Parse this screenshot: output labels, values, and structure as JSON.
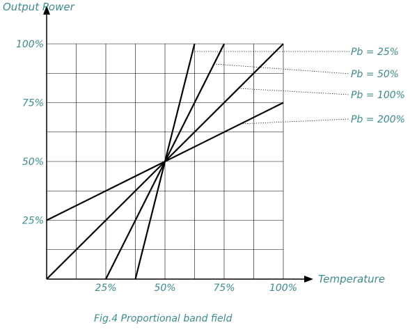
{
  "chart_data": {
    "type": "line",
    "title": "",
    "caption": "Fig.4 Proportional band field",
    "xlabel": "Temperature",
    "ylabel": "Output Power",
    "xlim": [
      0,
      100
    ],
    "ylim": [
      0,
      100
    ],
    "x_ticks": [
      {
        "value": 25,
        "label": "25%"
      },
      {
        "value": 50,
        "label": "50%"
      },
      {
        "value": 75,
        "label": "75%"
      },
      {
        "value": 100,
        "label": "100%"
      }
    ],
    "y_ticks": [
      {
        "value": 25,
        "label": "25%"
      },
      {
        "value": 50,
        "label": "50%"
      },
      {
        "value": 75,
        "label": "75%"
      },
      {
        "value": 100,
        "label": "100%"
      }
    ],
    "grid": true,
    "grid_step": 12.5,
    "series": [
      {
        "name": "Pb = 25%",
        "x": [
          37.5,
          62.5
        ],
        "y": [
          0,
          100
        ]
      },
      {
        "name": "Pb = 50%",
        "x": [
          25,
          75
        ],
        "y": [
          0,
          100
        ]
      },
      {
        "name": "Pb = 100%",
        "x": [
          0,
          100
        ],
        "y": [
          0,
          100
        ]
      },
      {
        "name": "Pb = 200%",
        "x": [
          0,
          100
        ],
        "y": [
          25,
          75
        ]
      }
    ],
    "colors": {
      "line": "#000000",
      "text": "#3c8c8c",
      "grid": "#000000",
      "leader": "#000000"
    }
  }
}
